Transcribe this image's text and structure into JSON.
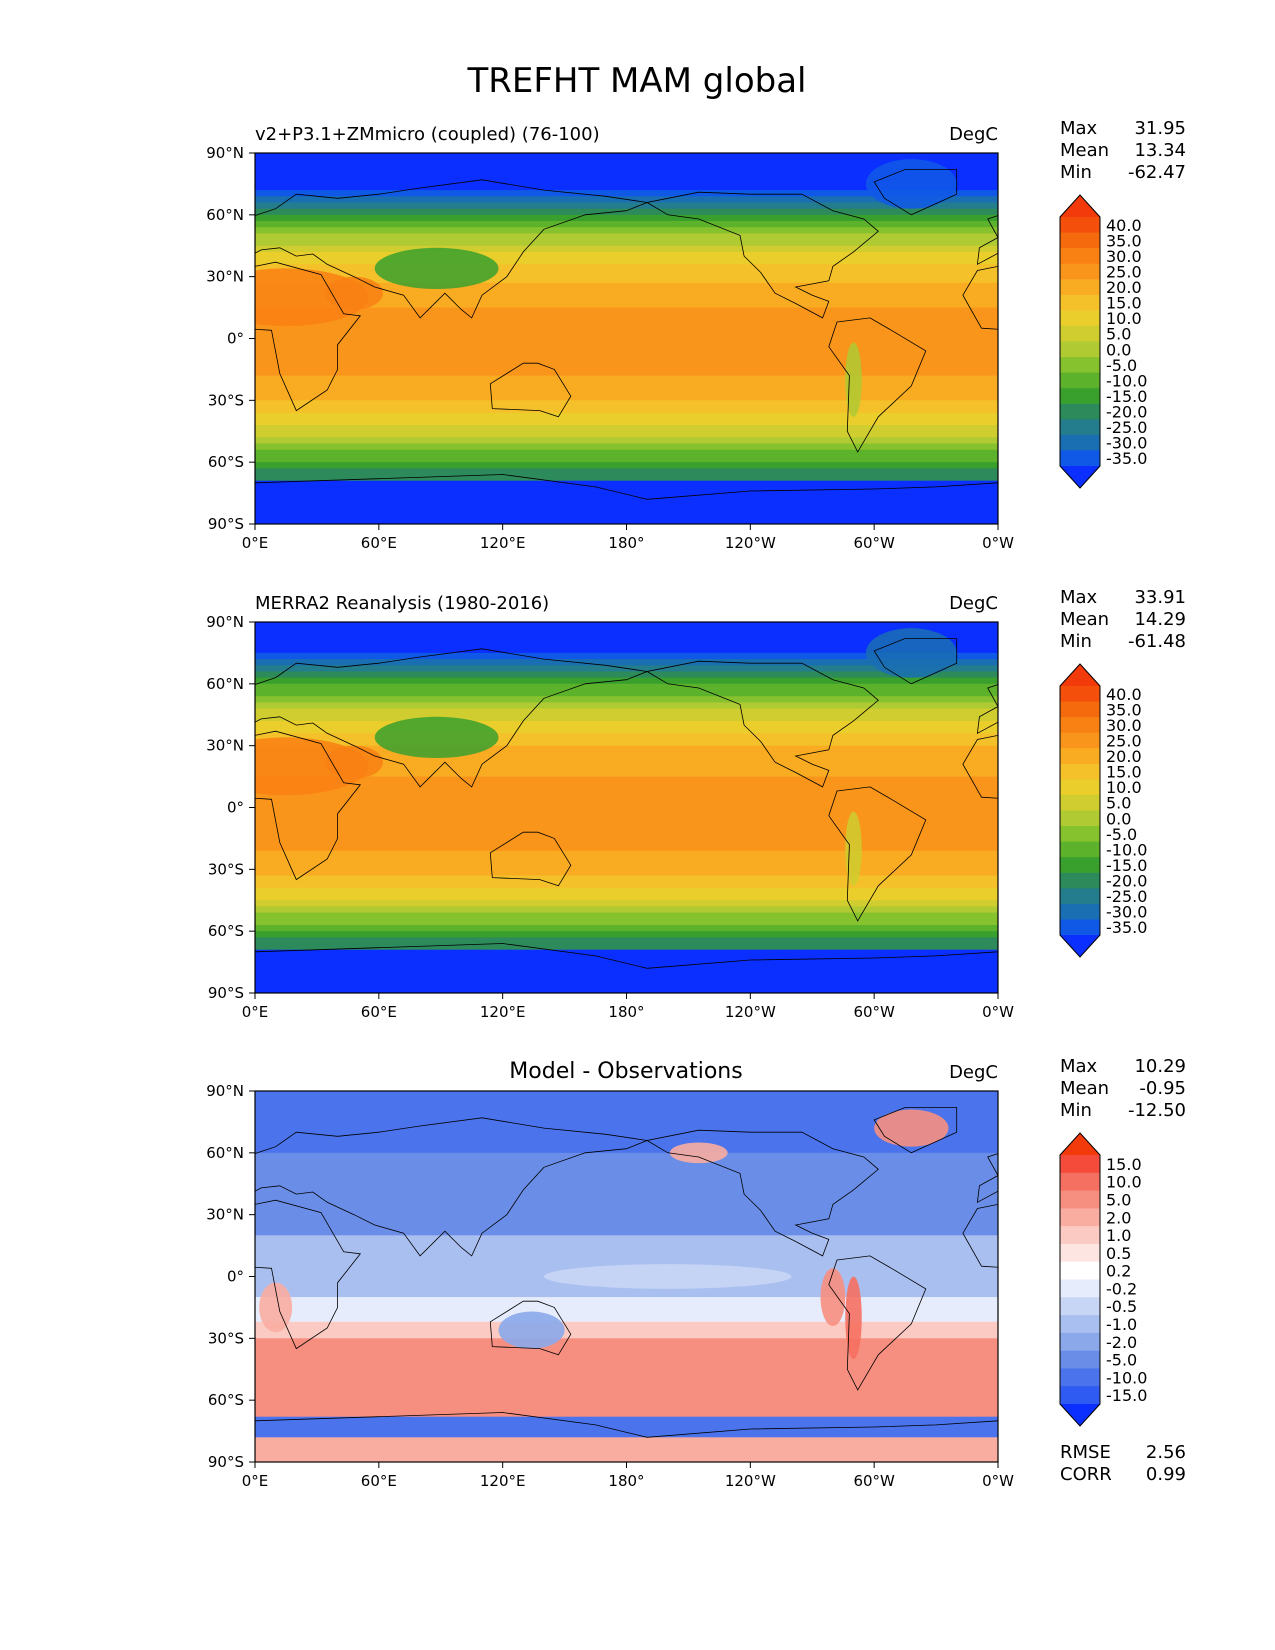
{
  "figure": {
    "title": "TREFHT MAM global"
  },
  "colors": {
    "abs_scale": [
      "#0a2fff",
      "#1059e6",
      "#1a6fb3",
      "#247d8c",
      "#2d8a5a",
      "#39a02e",
      "#5db22b",
      "#86c12e",
      "#afca32",
      "#cfcd2f",
      "#e9ce2c",
      "#f5c12a",
      "#f9ab22",
      "#fa951b",
      "#f98013",
      "#f66a0e",
      "#f44f0b",
      "#f23a0a"
    ],
    "diff_scale": [
      "#0a2fff",
      "#2f5bf2",
      "#4a73ec",
      "#6a8ee8",
      "#8aa8ea",
      "#a9bff0",
      "#c8d6f5",
      "#e6ecfb",
      "#ffffff",
      "#fde6e2",
      "#fbcac2",
      "#f9ada1",
      "#f78f80",
      "#f57060",
      "#f44b3b",
      "#f23a0a"
    ]
  },
  "chart_data": [
    {
      "type": "heatmap",
      "title": "v2+P3.1+ZMmicro (coupled) (76-100)",
      "units": "DegC",
      "stats": {
        "max_label": "Max",
        "max": "31.95",
        "mean_label": "Mean",
        "mean": "13.34",
        "min_label": "Min",
        "min": "-62.47"
      },
      "x_ticks": [
        "0°E",
        "60°E",
        "120°E",
        "180°",
        "120°W",
        "60°W",
        "0°W"
      ],
      "y_ticks": [
        "90°N",
        "60°N",
        "30°N",
        "0°",
        "30°S",
        "60°S",
        "90°S"
      ],
      "colorbar_levels": [
        "40.0",
        "35.0",
        "30.0",
        "25.0",
        "20.0",
        "15.0",
        "10.0",
        "5.0",
        "0.0",
        "-5.0",
        "-10.0",
        "-15.0",
        "-20.0",
        "-25.0",
        "-30.0",
        "-35.0"
      ],
      "field": "abs",
      "offset": -1.0
    },
    {
      "type": "heatmap",
      "title": "MERRA2 Reanalysis (1980-2016)",
      "units": "DegC",
      "stats": {
        "max_label": "Max",
        "max": "33.91",
        "mean_label": "Mean",
        "mean": "14.29",
        "min_label": "Min",
        "min": "-61.48"
      },
      "x_ticks": [
        "0°E",
        "60°E",
        "120°E",
        "180°",
        "120°W",
        "60°W",
        "0°W"
      ],
      "y_ticks": [
        "90°N",
        "60°N",
        "30°N",
        "0°",
        "30°S",
        "60°S",
        "90°S"
      ],
      "colorbar_levels": [
        "40.0",
        "35.0",
        "30.0",
        "25.0",
        "20.0",
        "15.0",
        "10.0",
        "5.0",
        "0.0",
        "-5.0",
        "-10.0",
        "-15.0",
        "-20.0",
        "-25.0",
        "-30.0",
        "-35.0"
      ],
      "field": "abs",
      "offset": 0.0
    },
    {
      "type": "heatmap",
      "title": "Model - Observations",
      "units": "DegC",
      "stats": {
        "max_label": "Max",
        "max": "10.29",
        "mean_label": "Mean",
        "mean": "-0.95",
        "min_label": "Min",
        "min": "-12.50"
      },
      "x_ticks": [
        "0°E",
        "60°E",
        "120°E",
        "180°",
        "120°W",
        "60°W",
        "0°W"
      ],
      "y_ticks": [
        "90°N",
        "60°N",
        "30°N",
        "0°",
        "30°S",
        "60°S",
        "90°S"
      ],
      "colorbar_levels": [
        "15.0",
        "10.0",
        "5.0",
        "2.0",
        "1.0",
        "0.5",
        "0.2",
        "-0.2",
        "-0.5",
        "-1.0",
        "-2.0",
        "-5.0",
        "-10.0",
        "-15.0"
      ],
      "field": "diff",
      "extra_stats": {
        "rmse_label": "RMSE",
        "rmse": "2.56",
        "corr_label": "CORR",
        "corr": "0.99"
      }
    }
  ]
}
